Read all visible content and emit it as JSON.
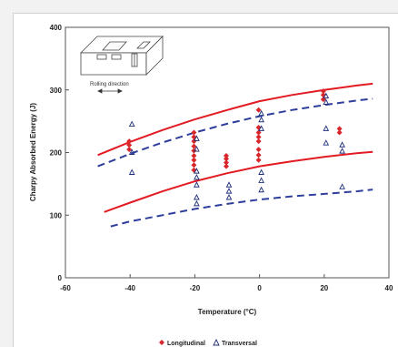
{
  "chart_data": {
    "type": "scatter",
    "title": "",
    "xlabel": "Temperature (°C)",
    "ylabel": "Charpy Absorbed Energy (J)",
    "xlim": [
      -60,
      40
    ],
    "ylim": [
      0,
      400
    ],
    "x_ticks": [
      "-60",
      "-40",
      "-20",
      "0",
      "20",
      "40"
    ],
    "y_ticks": [
      "0",
      "100",
      "200",
      "300",
      "400"
    ],
    "inset_label": "Rolling direction",
    "series": [
      {
        "name": "Longitudinal",
        "marker": "diamond",
        "color": "#d8262a",
        "points": [
          [
            -40,
            218
          ],
          [
            -40,
            212
          ],
          [
            -40,
            205
          ],
          [
            -20,
            232
          ],
          [
            -20,
            225
          ],
          [
            -20,
            218
          ],
          [
            -20,
            210
          ],
          [
            -20,
            203
          ],
          [
            -20,
            195
          ],
          [
            -20,
            188
          ],
          [
            -20,
            180
          ],
          [
            -20,
            172
          ],
          [
            -10,
            195
          ],
          [
            -10,
            190
          ],
          [
            -10,
            184
          ],
          [
            -10,
            178
          ],
          [
            0,
            268
          ],
          [
            0,
            240
          ],
          [
            0,
            232
          ],
          [
            0,
            225
          ],
          [
            0,
            218
          ],
          [
            0,
            205
          ],
          [
            0,
            196
          ],
          [
            0,
            188
          ],
          [
            20,
            298
          ],
          [
            20,
            292
          ],
          [
            20,
            285
          ],
          [
            25,
            238
          ],
          [
            25,
            232
          ]
        ]
      },
      {
        "name": "Transversal",
        "marker": "triangle",
        "color": "#1f2e7a",
        "points": [
          [
            -40,
            245
          ],
          [
            -40,
            200
          ],
          [
            -40,
            168
          ],
          [
            -20,
            222
          ],
          [
            -20,
            205
          ],
          [
            -20,
            170
          ],
          [
            -20,
            160
          ],
          [
            -20,
            148
          ],
          [
            -20,
            128
          ],
          [
            -20,
            118
          ],
          [
            -10,
            148
          ],
          [
            -10,
            138
          ],
          [
            -10,
            128
          ],
          [
            0,
            262
          ],
          [
            0,
            252
          ],
          [
            0,
            238
          ],
          [
            0,
            168
          ],
          [
            0,
            155
          ],
          [
            0,
            140
          ],
          [
            20,
            290
          ],
          [
            20,
            280
          ],
          [
            20,
            238
          ],
          [
            20,
            215
          ],
          [
            25,
            212
          ],
          [
            25,
            202
          ],
          [
            25,
            145
          ]
        ]
      }
    ],
    "curves": [
      {
        "style": "solid",
        "color": "#e21b23",
        "x": [
          -50,
          -40,
          -30,
          -20,
          -10,
          0,
          10,
          20,
          30,
          35
        ],
        "y": [
          196,
          217,
          236,
          253,
          268,
          282,
          292,
          300,
          307,
          310
        ]
      },
      {
        "style": "dashed",
        "color": "#2e3e9c",
        "x": [
          -50,
          -40,
          -30,
          -20,
          -10,
          0,
          10,
          20,
          30,
          35
        ],
        "y": [
          178,
          198,
          216,
          232,
          246,
          258,
          268,
          276,
          283,
          286
        ]
      },
      {
        "style": "solid",
        "color": "#e21b23",
        "x": [
          -48,
          -40,
          -30,
          -20,
          -10,
          0,
          10,
          20,
          30,
          35
        ],
        "y": [
          105,
          120,
          138,
          154,
          167,
          178,
          186,
          193,
          199,
          201
        ]
      },
      {
        "style": "dashed",
        "color": "#2e3e9c",
        "x": [
          -46,
          -40,
          -30,
          -20,
          -10,
          0,
          10,
          20,
          30,
          35
        ],
        "y": [
          82,
          90,
          100,
          110,
          118,
          125,
          130,
          134,
          138,
          141
        ]
      }
    ],
    "grid": false,
    "legend_position": "bottom"
  }
}
